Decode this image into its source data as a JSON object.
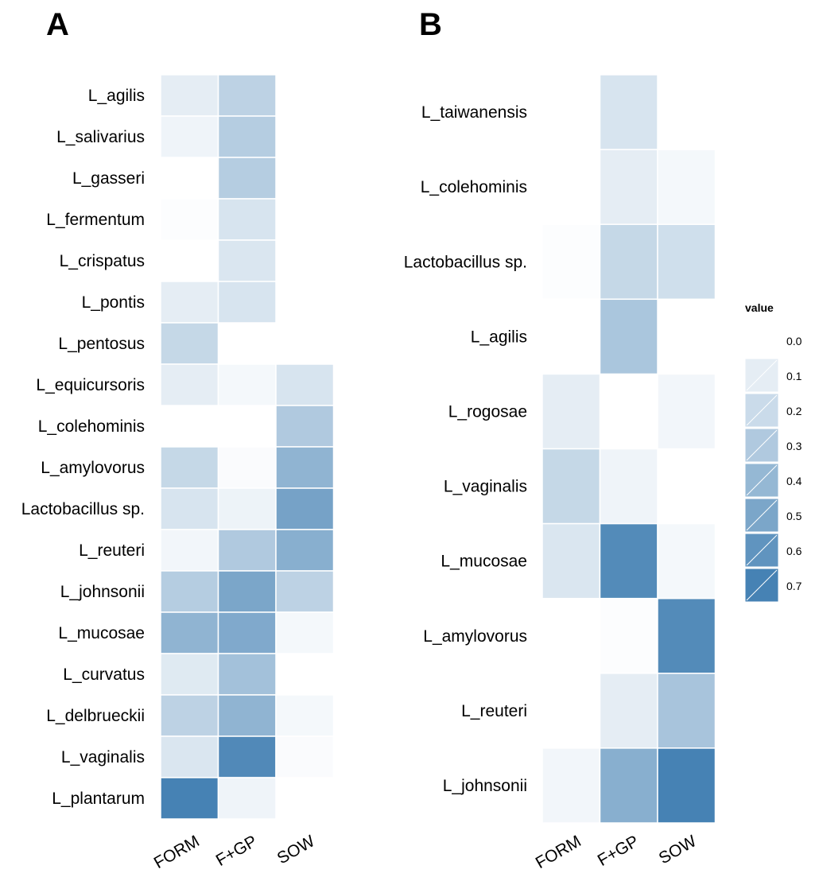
{
  "chart_data": [
    {
      "type": "heatmap",
      "panel_label": "A",
      "columns": [
        "FORM",
        "F+GP",
        "SOW"
      ],
      "rows": [
        "L_agilis",
        "L_salivarius",
        "L_gasseri",
        "L_fermentum",
        "L_crispatus",
        "L_pontis",
        "L_pentosus",
        "L_equicursoris",
        "L_colehominis",
        "L_amylovorus",
        "Lactobacillus sp.",
        "L_reuteri",
        "L_johnsonii",
        "L_mucosae",
        "L_curvatus",
        "L_delbrueckii",
        "L_vaginalis",
        "L_plantarum"
      ],
      "values": [
        [
          0.1,
          0.25,
          null
        ],
        [
          0.06,
          0.28,
          null
        ],
        [
          null,
          0.28,
          null
        ],
        [
          0.01,
          0.15,
          null
        ],
        [
          null,
          0.14,
          null
        ],
        [
          0.1,
          0.15,
          null
        ],
        [
          0.22,
          null,
          null
        ],
        [
          0.1,
          0.04,
          0.15
        ],
        [
          null,
          null,
          0.3
        ],
        [
          0.22,
          0.02,
          0.42
        ],
        [
          0.15,
          0.07,
          0.52
        ],
        [
          0.05,
          0.3,
          0.45
        ],
        [
          0.28,
          0.5,
          0.25
        ],
        [
          0.42,
          0.48,
          0.04
        ],
        [
          0.12,
          0.35,
          null
        ],
        [
          0.25,
          0.42,
          0.04
        ],
        [
          0.14,
          0.66,
          0.02
        ],
        [
          0.72,
          0.06,
          null
        ]
      ]
    },
    {
      "type": "heatmap",
      "panel_label": "B",
      "columns": [
        "FORM",
        "F+GP",
        "SOW"
      ],
      "rows": [
        "L_taiwanensis",
        "L_colehominis",
        "Lactobacillus sp.",
        "L_agilis",
        "L_rogosae",
        "L_vaginalis",
        "L_mucosae",
        "L_amylovorus",
        "L_reuteri",
        "L_johnsonii"
      ],
      "values": [
        [
          null,
          0.15,
          null
        ],
        [
          null,
          0.1,
          0.04
        ],
        [
          0.01,
          0.22,
          0.18
        ],
        [
          null,
          0.32,
          null
        ],
        [
          0.1,
          null,
          0.05
        ],
        [
          0.22,
          0.06,
          null
        ],
        [
          0.14,
          0.65,
          0.04
        ],
        [
          null,
          0.01,
          0.65
        ],
        [
          null,
          0.1,
          0.33
        ],
        [
          0.05,
          0.45,
          0.72
        ]
      ]
    }
  ],
  "legend": {
    "title": "value",
    "labels": [
      "0.0",
      "0.1",
      "0.2",
      "0.3",
      "0.4",
      "0.5",
      "0.6",
      "0.7"
    ],
    "values": [
      0.0,
      0.1,
      0.2,
      0.3,
      0.4,
      0.5,
      0.6,
      0.7
    ],
    "color_low": "#ffffff",
    "color_high": "#4682b4"
  }
}
